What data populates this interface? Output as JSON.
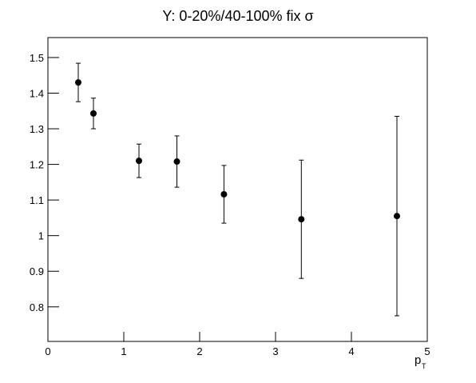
{
  "chart_data": {
    "type": "scatter",
    "title": "Y: 0-20%/40-100% fix σ",
    "x_label": {
      "text": "p",
      "subscript": "T"
    },
    "series": [
      {
        "color": "#000000",
        "x": [
          0.4,
          0.6,
          1.2,
          1.7,
          2.32,
          3.34,
          4.6
        ],
        "values": [
          1.43,
          1.343,
          1.21,
          1.208,
          1.116,
          1.046,
          1.055
        ],
        "errors": [
          0.054,
          0.043,
          0.047,
          0.072,
          0.081,
          0.166,
          0.28
        ]
      }
    ],
    "xlim": [
      0,
      5
    ],
    "xticks": [
      0,
      1,
      2,
      3,
      4,
      5
    ],
    "ylim": [
      0.703,
      1.556
    ],
    "yticks": [
      0.8,
      0.9,
      1,
      1.1,
      1.2,
      1.3,
      1.4,
      1.5
    ]
  }
}
